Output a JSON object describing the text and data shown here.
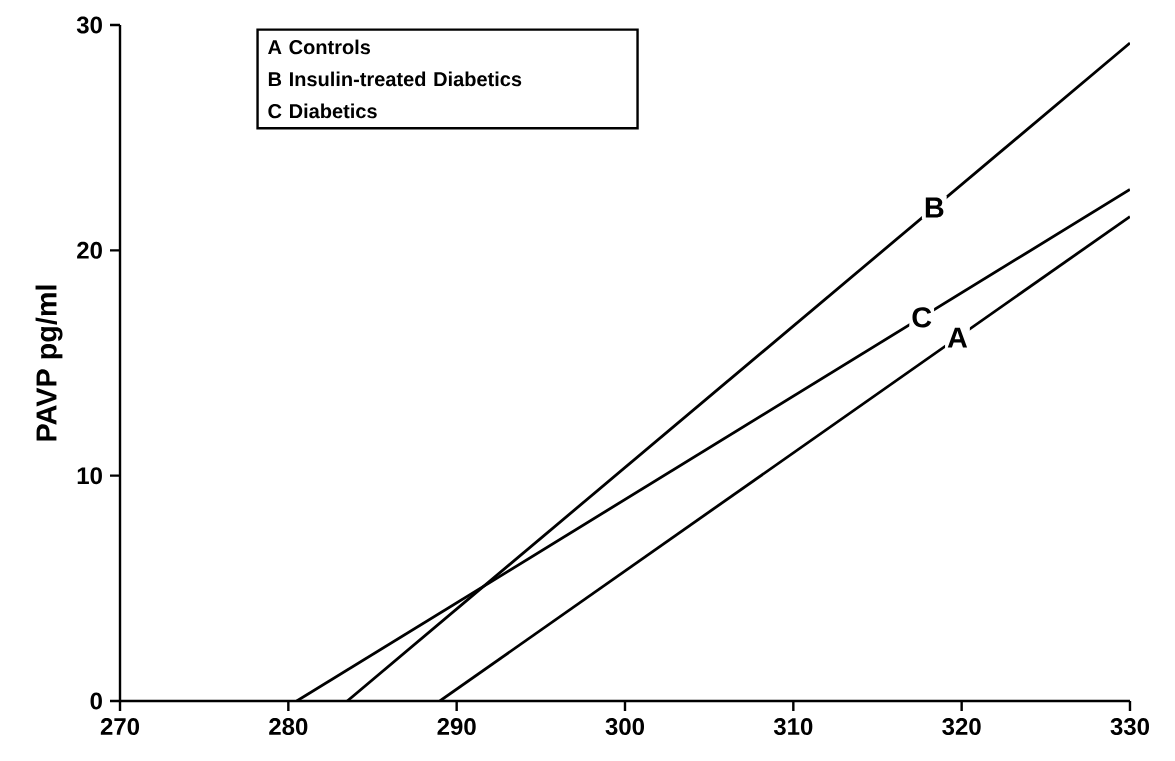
{
  "chart_data": {
    "type": "line",
    "ylabel": "PAVP pg/ml",
    "xlim": [
      270,
      330
    ],
    "xticks": [
      270,
      280,
      290,
      300,
      310,
      320,
      330
    ],
    "ylim": [
      0,
      30
    ],
    "yticks": [
      0,
      10,
      20,
      30
    ],
    "grid": false,
    "annotations": [
      "A Controls",
      "B Insulin-treated Diabetics",
      "C Diabetics"
    ],
    "series": [
      {
        "name": "A",
        "color": "#000000",
        "x": [
          289,
          330
        ],
        "values": [
          0,
          21.5
        ]
      },
      {
        "name": "B",
        "color": "#000000",
        "x": [
          283.5,
          330
        ],
        "values": [
          0,
          29.2
        ]
      },
      {
        "name": "C",
        "color": "#000000",
        "x": [
          280.5,
          330
        ],
        "values": [
          0,
          22.7
        ]
      }
    ]
  }
}
